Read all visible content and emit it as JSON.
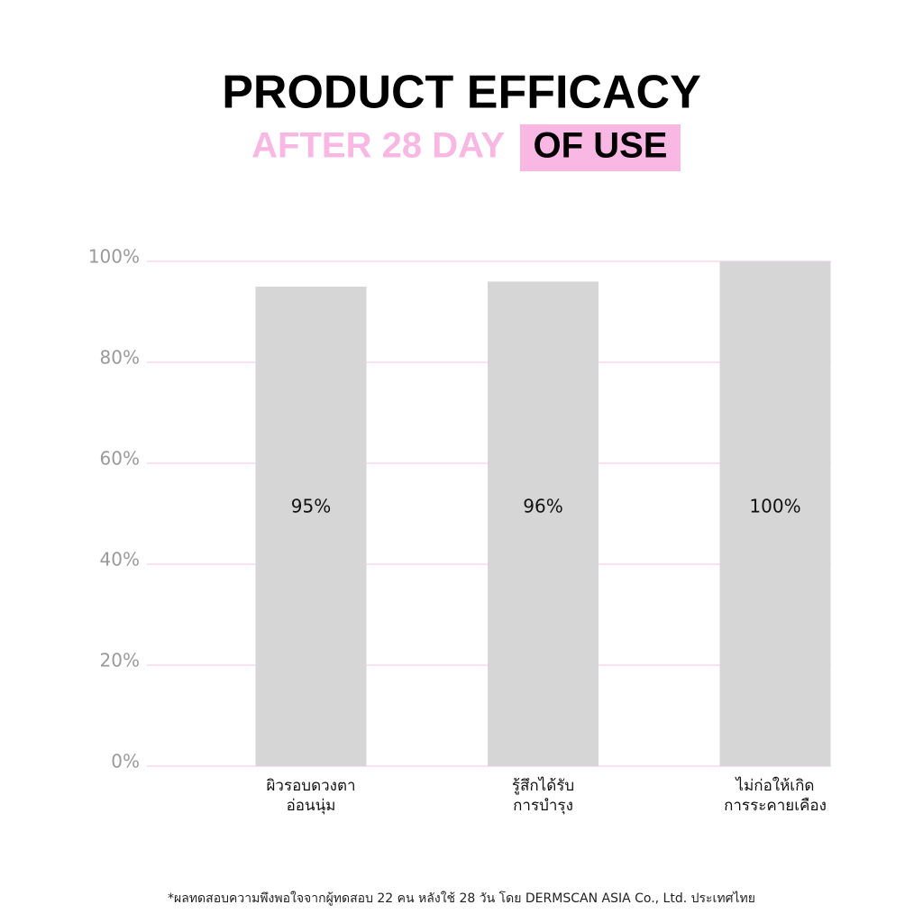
{
  "chart_data": {
    "type": "bar",
    "title": "PRODUCT EFFICACY",
    "subtitle": [
      "AFTER 28 DAY",
      "OF USE"
    ],
    "categories": [
      [
        "ผิวรอบดวงตา",
        "อ่อนนุ่ม"
      ],
      [
        "รู้สึกได้รับ",
        "การบำรุง"
      ],
      [
        "ไม่ก่อให้เกิด",
        "การระคายเคือง"
      ]
    ],
    "values": [
      95,
      96,
      100
    ],
    "value_labels": [
      "95%",
      "96%",
      "100%"
    ],
    "color": "#d6d6d6",
    "ylim": [
      0,
      100
    ],
    "yticks": [
      {
        "value": 0,
        "label": "0%"
      },
      {
        "value": 20,
        "label": "20%"
      },
      {
        "value": 40,
        "label": "40%"
      },
      {
        "value": 60,
        "label": "60%"
      },
      {
        "value": 80,
        "label": "80%"
      },
      {
        "value": 100,
        "label": "100%"
      }
    ],
    "grid": true,
    "note": "*ผลทดสอบความพึงพอใจจากผู้ทดสอบ 22 คน หลังใช้ 28 วัน โดย DERMSCAN ASIA Co., Ltd. ประเทศไทย"
  }
}
